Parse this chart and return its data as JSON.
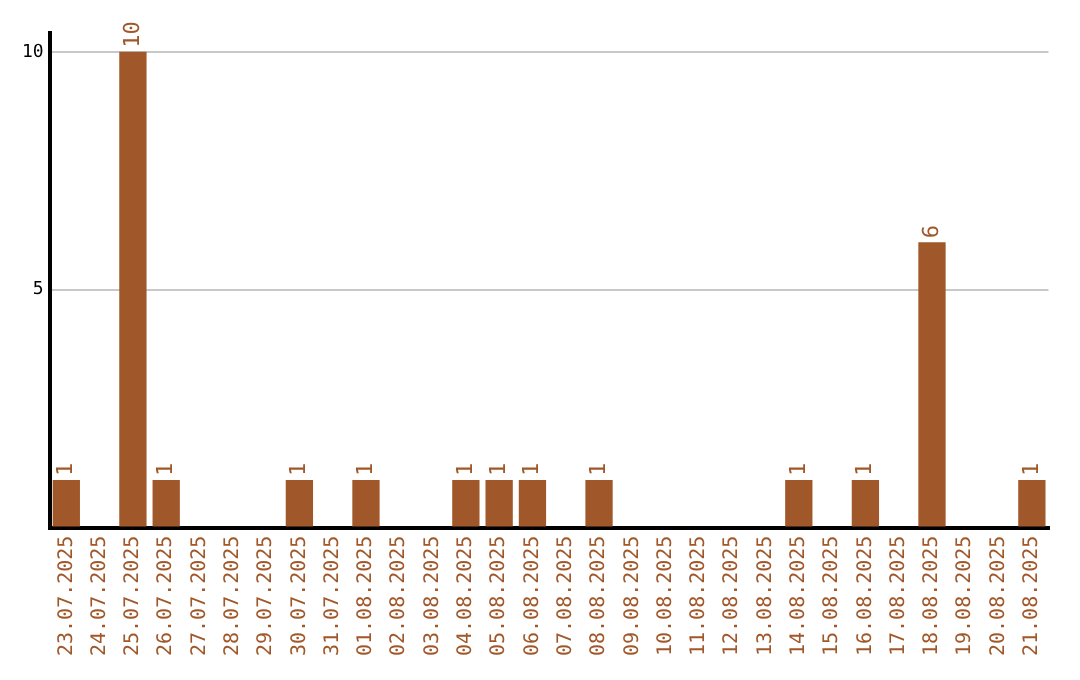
{
  "chart_data": {
    "type": "bar",
    "categories": [
      "23.07.2025",
      "24.07.2025",
      "25.07.2025",
      "26.07.2025",
      "27.07.2025",
      "28.07.2025",
      "29.07.2025",
      "30.07.2025",
      "31.07.2025",
      "01.08.2025",
      "02.08.2025",
      "03.08.2025",
      "04.08.2025",
      "05.08.2025",
      "06.08.2025",
      "07.08.2025",
      "08.08.2025",
      "09.08.2025",
      "10.08.2025",
      "11.08.2025",
      "12.08.2025",
      "13.08.2025",
      "14.08.2025",
      "15.08.2025",
      "16.08.2025",
      "17.08.2025",
      "18.08.2025",
      "19.08.2025",
      "20.08.2025",
      "21.08.2025"
    ],
    "values": [
      1,
      0,
      10,
      1,
      0,
      0,
      0,
      1,
      0,
      1,
      0,
      0,
      1,
      1,
      1,
      0,
      1,
      0,
      0,
      0,
      0,
      0,
      1,
      0,
      1,
      0,
      6,
      0,
      0,
      1
    ],
    "value_labels": [
      "1",
      null,
      "10",
      "1",
      null,
      null,
      null,
      "1",
      null,
      "1",
      null,
      null,
      "1",
      "1",
      "1",
      null,
      "1",
      null,
      null,
      null,
      null,
      null,
      "1",
      null,
      "1",
      null,
      "6",
      null,
      null,
      "1"
    ],
    "color": "#a0582a",
    "ylim": [
      0,
      10.4
    ],
    "yticks": [
      {
        "value": 0,
        "label": null
      },
      5,
      10
    ],
    "grid": "y",
    "legend": false
  }
}
